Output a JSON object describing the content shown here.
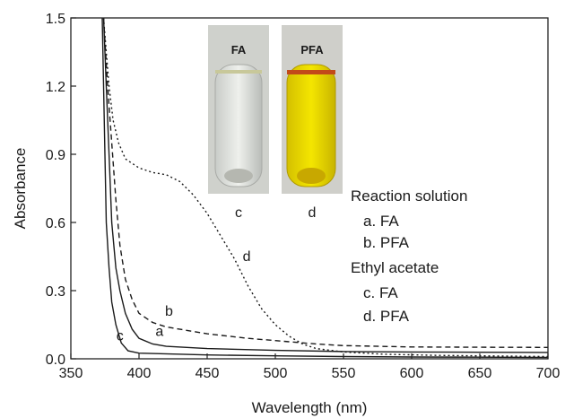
{
  "chart_data": {
    "type": "line",
    "xlabel": "Wavelength (nm)",
    "ylabel": "Absorbance",
    "xlim": [
      350,
      700
    ],
    "ylim": [
      0,
      1.5
    ],
    "x_ticks": [
      350,
      400,
      450,
      500,
      550,
      600,
      650,
      700
    ],
    "y_ticks": [
      0.0,
      0.3,
      0.6,
      0.9,
      1.2,
      1.5
    ],
    "y_tick_labels": [
      "0.0",
      "0.3",
      "0.6",
      "0.9",
      "1.2",
      "1.5"
    ],
    "grid": false,
    "series": [
      {
        "name": "a",
        "style": "solid",
        "points": [
          [
            374,
            1.5
          ],
          [
            376,
            1.2
          ],
          [
            378,
            0.9
          ],
          [
            380,
            0.6
          ],
          [
            383,
            0.4
          ],
          [
            386,
            0.3
          ],
          [
            390,
            0.2
          ],
          [
            395,
            0.13
          ],
          [
            400,
            0.09
          ],
          [
            410,
            0.065
          ],
          [
            420,
            0.055
          ],
          [
            450,
            0.045
          ],
          [
            500,
            0.037
          ],
          [
            550,
            0.032
          ],
          [
            600,
            0.03
          ],
          [
            650,
            0.029
          ],
          [
            700,
            0.028
          ]
        ]
      },
      {
        "name": "b",
        "style": "dashed",
        "points": [
          [
            374,
            1.5
          ],
          [
            377,
            1.2
          ],
          [
            380,
            0.95
          ],
          [
            383,
            0.7
          ],
          [
            386,
            0.5
          ],
          [
            390,
            0.35
          ],
          [
            395,
            0.26
          ],
          [
            400,
            0.2
          ],
          [
            410,
            0.16
          ],
          [
            420,
            0.14
          ],
          [
            450,
            0.11
          ],
          [
            480,
            0.09
          ],
          [
            500,
            0.08
          ],
          [
            530,
            0.065
          ],
          [
            550,
            0.058
          ],
          [
            600,
            0.052
          ],
          [
            650,
            0.051
          ],
          [
            700,
            0.05
          ]
        ]
      },
      {
        "name": "c",
        "style": "solid",
        "points": [
          [
            373,
            1.5
          ],
          [
            374,
            1.2
          ],
          [
            375,
            0.9
          ],
          [
            376,
            0.6
          ],
          [
            378,
            0.4
          ],
          [
            380,
            0.25
          ],
          [
            383,
            0.15
          ],
          [
            387,
            0.07
          ],
          [
            392,
            0.035
          ],
          [
            400,
            0.025
          ],
          [
            450,
            0.017
          ],
          [
            500,
            0.013
          ],
          [
            550,
            0.01
          ],
          [
            600,
            0.008
          ],
          [
            650,
            0.007
          ],
          [
            700,
            0.006
          ]
        ]
      },
      {
        "name": "d",
        "style": "dotted",
        "points": [
          [
            374,
            1.5
          ],
          [
            376,
            1.35
          ],
          [
            378,
            1.2
          ],
          [
            381,
            1.05
          ],
          [
            385,
            0.95
          ],
          [
            390,
            0.88
          ],
          [
            400,
            0.84
          ],
          [
            410,
            0.82
          ],
          [
            420,
            0.81
          ],
          [
            430,
            0.78
          ],
          [
            440,
            0.72
          ],
          [
            450,
            0.64
          ],
          [
            460,
            0.54
          ],
          [
            470,
            0.44
          ],
          [
            480,
            0.32
          ],
          [
            490,
            0.22
          ],
          [
            500,
            0.15
          ],
          [
            510,
            0.1
          ],
          [
            520,
            0.065
          ],
          [
            530,
            0.045
          ],
          [
            550,
            0.03
          ],
          [
            580,
            0.02
          ],
          [
            620,
            0.015
          ],
          [
            700,
            0.01
          ]
        ]
      }
    ],
    "curve_labels": [
      {
        "text": "a",
        "x": 415,
        "y": 0.1
      },
      {
        "text": "b",
        "x": 422,
        "y": 0.19
      },
      {
        "text": "c",
        "x": 386,
        "y": 0.08
      },
      {
        "text": "d",
        "x": 479,
        "y": 0.43
      }
    ],
    "inset": {
      "photos": [
        {
          "label": "FA",
          "caption": "c",
          "liquid_color": "#d8dcd6"
        },
        {
          "label": "PFA",
          "caption": "d",
          "liquid_color": "#e8d400"
        }
      ]
    },
    "legend": {
      "placement": "right",
      "lines": [
        "Reaction solution",
        "a. FA",
        "b. PFA",
        "Ethyl acetate",
        "c. FA",
        "d. PFA"
      ]
    }
  }
}
